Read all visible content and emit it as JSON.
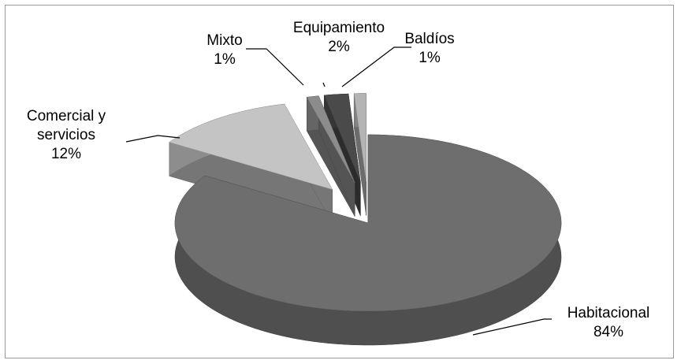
{
  "chart_data": {
    "type": "pie",
    "categories": [
      "Habitacional",
      "Comercial y servicios",
      "Mixto",
      "Equipamiento",
      "Baldíos"
    ],
    "values": [
      84,
      12,
      1,
      2,
      1
    ],
    "value_labels": [
      "84%",
      "12%",
      "1%",
      "2%",
      "1%"
    ],
    "colors": [
      "#6e6e6e",
      "#c4c4c4",
      "#8c8c8c",
      "#4a4a4a",
      "#b4b4b4"
    ]
  }
}
